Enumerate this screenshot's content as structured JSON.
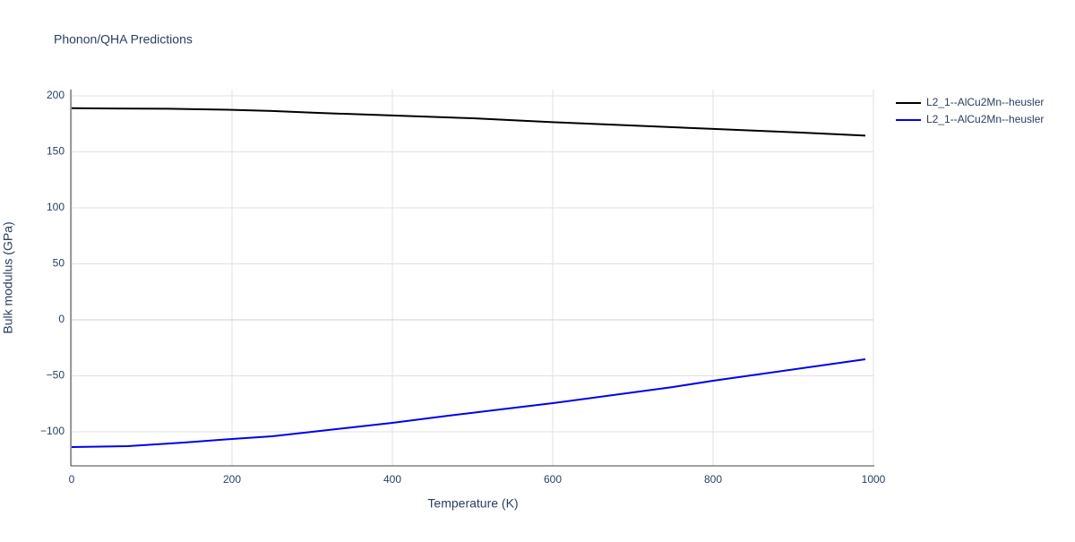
{
  "chart_data": {
    "type": "line",
    "title": "Phonon/QHA Predictions",
    "x_label": "Temperature (K)",
    "y_label": "Bulk modulus (GPa)",
    "xlim": [
      0,
      1000
    ],
    "ylim": [
      -130.4,
      205.6
    ],
    "xticks": [
      0,
      200,
      400,
      600,
      800,
      1000
    ],
    "yticks": [
      {
        "value": -100,
        "label": "−100"
      },
      {
        "value": -50,
        "label": "−50"
      },
      0,
      50,
      100,
      150,
      200
    ],
    "grid": true,
    "legend": "outside-right",
    "series": [
      {
        "name": "L2_1--AlCu2Mn--heusler",
        "color": "#000000",
        "x": [
          0,
          120,
          200,
          250,
          300,
          400,
          500,
          600,
          700,
          800,
          900,
          990
        ],
        "values": [
          189,
          188.5,
          187.5,
          186.5,
          185,
          182.5,
          180,
          176.5,
          173.5,
          170.5,
          167.5,
          164.5
        ]
      },
      {
        "name": "L2_1--AlCu2Mn--heusler",
        "color": "#0000ee",
        "x": [
          0,
          70,
          140,
          200,
          250,
          350,
          400,
          470,
          600,
          750,
          800,
          990
        ],
        "values": [
          -113.6,
          -112.8,
          -109.6,
          -106.4,
          -104,
          -96,
          -92,
          -85.6,
          -74.4,
          -60,
          -54.4,
          -35.2
        ]
      }
    ]
  }
}
